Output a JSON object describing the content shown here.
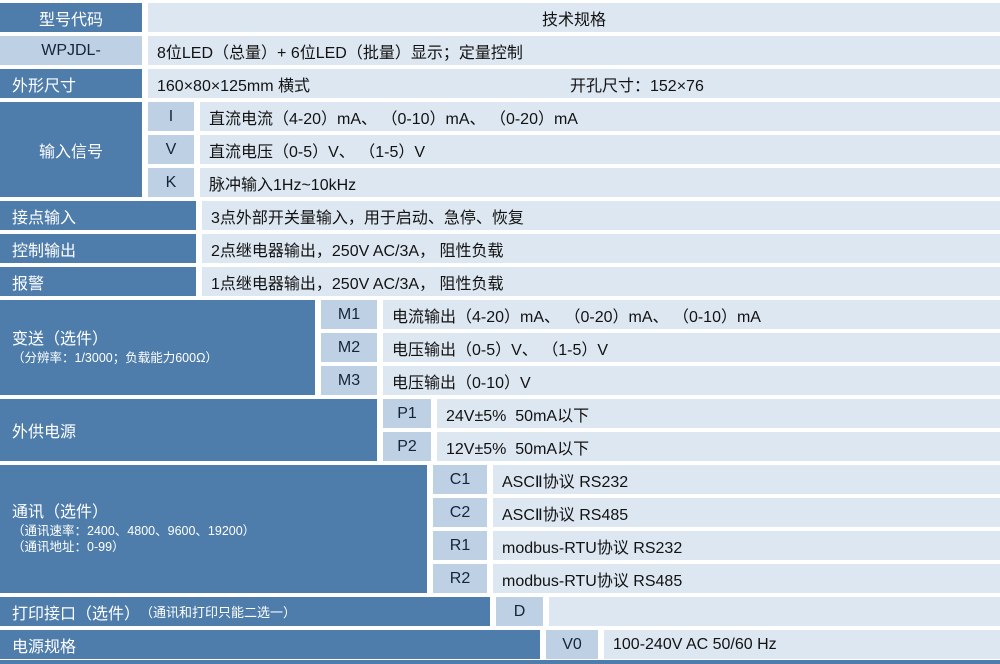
{
  "colors": {
    "dark_blue": "#4e7dab",
    "code_cell": "#bdd0e4",
    "content_cell": "#dde7f1"
  },
  "header": {
    "model_col": "型号代码",
    "spec_col": "技术规格"
  },
  "model_row": {
    "code": "WPJDL-",
    "desc": "8位LED（总量）+ 6位LED（批量）显示；定量控制"
  },
  "dimensions_row": {
    "label": "外形尺寸",
    "size": "160×80×125mm 横式",
    "cutout": "开孔尺寸：152×76"
  },
  "input_signal": {
    "label": "输入信号",
    "options": [
      {
        "code": "I",
        "desc": "直流电流（4-20）mA、 （0-10）mA、 （0-20）mA"
      },
      {
        "code": "V",
        "desc": "直流电压（0-5）V、 （1-5）V"
      },
      {
        "code": "K",
        "desc": "脉冲输入1Hz~10kHz"
      }
    ]
  },
  "contact_input": {
    "label": "接点输入",
    "desc": "3点外部开关量输入，用于启动、急停、恢复"
  },
  "control_output": {
    "label": "控制输出",
    "desc": "2点继电器输出，250V AC/3A， 阻性负载"
  },
  "alarm": {
    "label": "报警",
    "desc": "1点继电器输出，250V AC/3A， 阻性负载"
  },
  "transmit": {
    "label": "变送（选件）",
    "note": "（分辨率：1/3000；负载能力600Ω）",
    "options": [
      {
        "code": "M1",
        "desc": "电流输出（4-20）mA、 （0-20）mA、 （0-10）mA"
      },
      {
        "code": "M2",
        "desc": "电压输出（0-5）V、 （1-5）V"
      },
      {
        "code": "M3",
        "desc": "电压输出（0-10）V"
      }
    ]
  },
  "ext_power": {
    "label": "外供电源",
    "options": [
      {
        "code": "P1",
        "desc": "24V±5%  50mA以下"
      },
      {
        "code": "P2",
        "desc": "12V±5%  50mA以下"
      }
    ]
  },
  "comm": {
    "label": "通讯（选件）",
    "note1": "（通讯速率：2400、4800、9600、19200）",
    "note2": "（通讯地址：0-99）",
    "options": [
      {
        "code": "C1",
        "desc": "ASCⅡ协议 RS232"
      },
      {
        "code": "C2",
        "desc": "ASCⅡ协议 RS485"
      },
      {
        "code": "R1",
        "desc": "modbus-RTU协议 RS232"
      },
      {
        "code": "R2",
        "desc": "modbus-RTU协议 RS485"
      }
    ]
  },
  "print_row": {
    "label": "打印接口（选件）",
    "note": "（通讯和打印只能二选一）",
    "code": "D",
    "desc": ""
  },
  "power_row": {
    "label": "电源规格",
    "code": "V0",
    "desc": "100-240V AC 50/60 Hz"
  }
}
